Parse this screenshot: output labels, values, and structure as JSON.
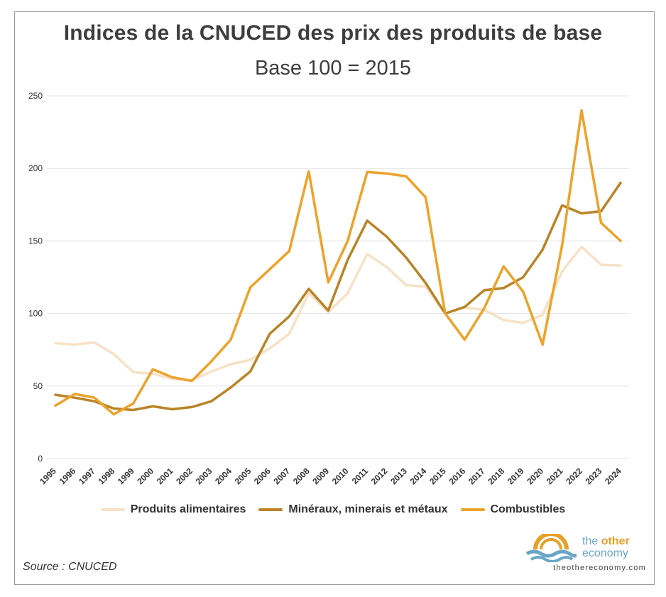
{
  "source_label": "Source : CNUCED",
  "brand": {
    "name_part1": "the",
    "name_part2": "other",
    "name_part3": "economy",
    "url": "theothereconomy.com",
    "logo_icon": "sun-wave-icon"
  },
  "chart_data": {
    "type": "line",
    "title": "Indices de la CNUCED des prix des produits de base",
    "subtitle": "Base 100 = 2015",
    "xlabel": "",
    "ylabel": "",
    "ylim": [
      0,
      250
    ],
    "yticks": [
      "0",
      "50",
      "100",
      "150",
      "200",
      "250"
    ],
    "grid": true,
    "legend_position": "bottom",
    "categories": [
      "1995",
      "1996",
      "1997",
      "1998",
      "1999",
      "2000",
      "2001",
      "2002",
      "2003",
      "2004",
      "2005",
      "2006",
      "2007",
      "2008",
      "2009",
      "2010",
      "2011",
      "2012",
      "2013",
      "2014",
      "2015",
      "2016",
      "2017",
      "2018",
      "2019",
      "2020",
      "2021",
      "2022",
      "2023",
      "2024"
    ],
    "series": [
      {
        "name": "Produits alimentaires",
        "color": "#f8e1c6",
        "values": [
          79.5,
          78.5,
          80,
          72,
          59.5,
          58.5,
          55,
          54,
          60,
          65,
          68,
          76,
          86,
          114,
          101,
          114,
          141,
          132,
          119.5,
          118.5,
          100,
          104,
          102.5,
          95.5,
          93.5,
          99,
          129,
          146,
          133.5,
          133
        ]
      },
      {
        "name": "Minéraux, minerais et métaux",
        "color": "#b98427",
        "values": [
          44,
          42,
          39.5,
          34.5,
          33.5,
          36,
          34,
          35.5,
          39.5,
          49,
          60,
          86,
          98,
          117,
          102,
          137,
          164,
          153,
          138.5,
          121,
          100,
          104.5,
          116,
          117.5,
          125,
          144,
          174.5,
          169,
          170.5,
          190
        ]
      },
      {
        "name": "Combustibles",
        "color": "#eda22b",
        "values": [
          36.5,
          44.5,
          42,
          30.5,
          38,
          61.5,
          56,
          53.5,
          67,
          82,
          118,
          130.5,
          143,
          198,
          121.5,
          150,
          197.5,
          196.5,
          194.5,
          180,
          100,
          82,
          103.5,
          132.5,
          115,
          78.5,
          147,
          240,
          162.5,
          150
        ]
      }
    ]
  }
}
